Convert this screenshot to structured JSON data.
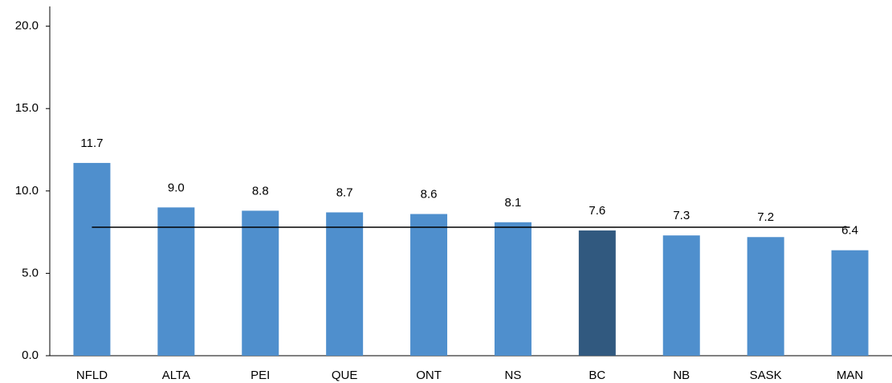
{
  "chart_data": {
    "type": "bar",
    "categories": [
      "NFLD",
      "ALTA",
      "PEI",
      "QUE",
      "ONT",
      "NS",
      "BC",
      "NB",
      "SASK",
      "MAN"
    ],
    "values": [
      11.7,
      9.0,
      8.8,
      8.7,
      8.6,
      8.1,
      7.6,
      7.3,
      7.2,
      6.4
    ],
    "value_labels": [
      "11.7",
      "9.0",
      "8.8",
      "8.7",
      "8.6",
      "8.1",
      "7.6",
      "7.3",
      "7.2",
      "6.4"
    ],
    "colors": [
      "#4f8fcd",
      "#4f8fcd",
      "#4f8fcd",
      "#4f8fcd",
      "#4f8fcd",
      "#4f8fcd",
      "#31597f",
      "#4f8fcd",
      "#4f8fcd",
      "#4f8fcd"
    ],
    "reference_line": 7.8,
    "ylim": [
      0,
      21.2
    ],
    "yticks": [
      {
        "value": 0,
        "label": "0.0"
      },
      {
        "value": 5,
        "label": "5.0"
      },
      {
        "value": 10,
        "label": "10.0"
      },
      {
        "value": 15,
        "label": "15.0"
      },
      {
        "value": 20,
        "label": "20.0"
      }
    ],
    "grid": false
  }
}
